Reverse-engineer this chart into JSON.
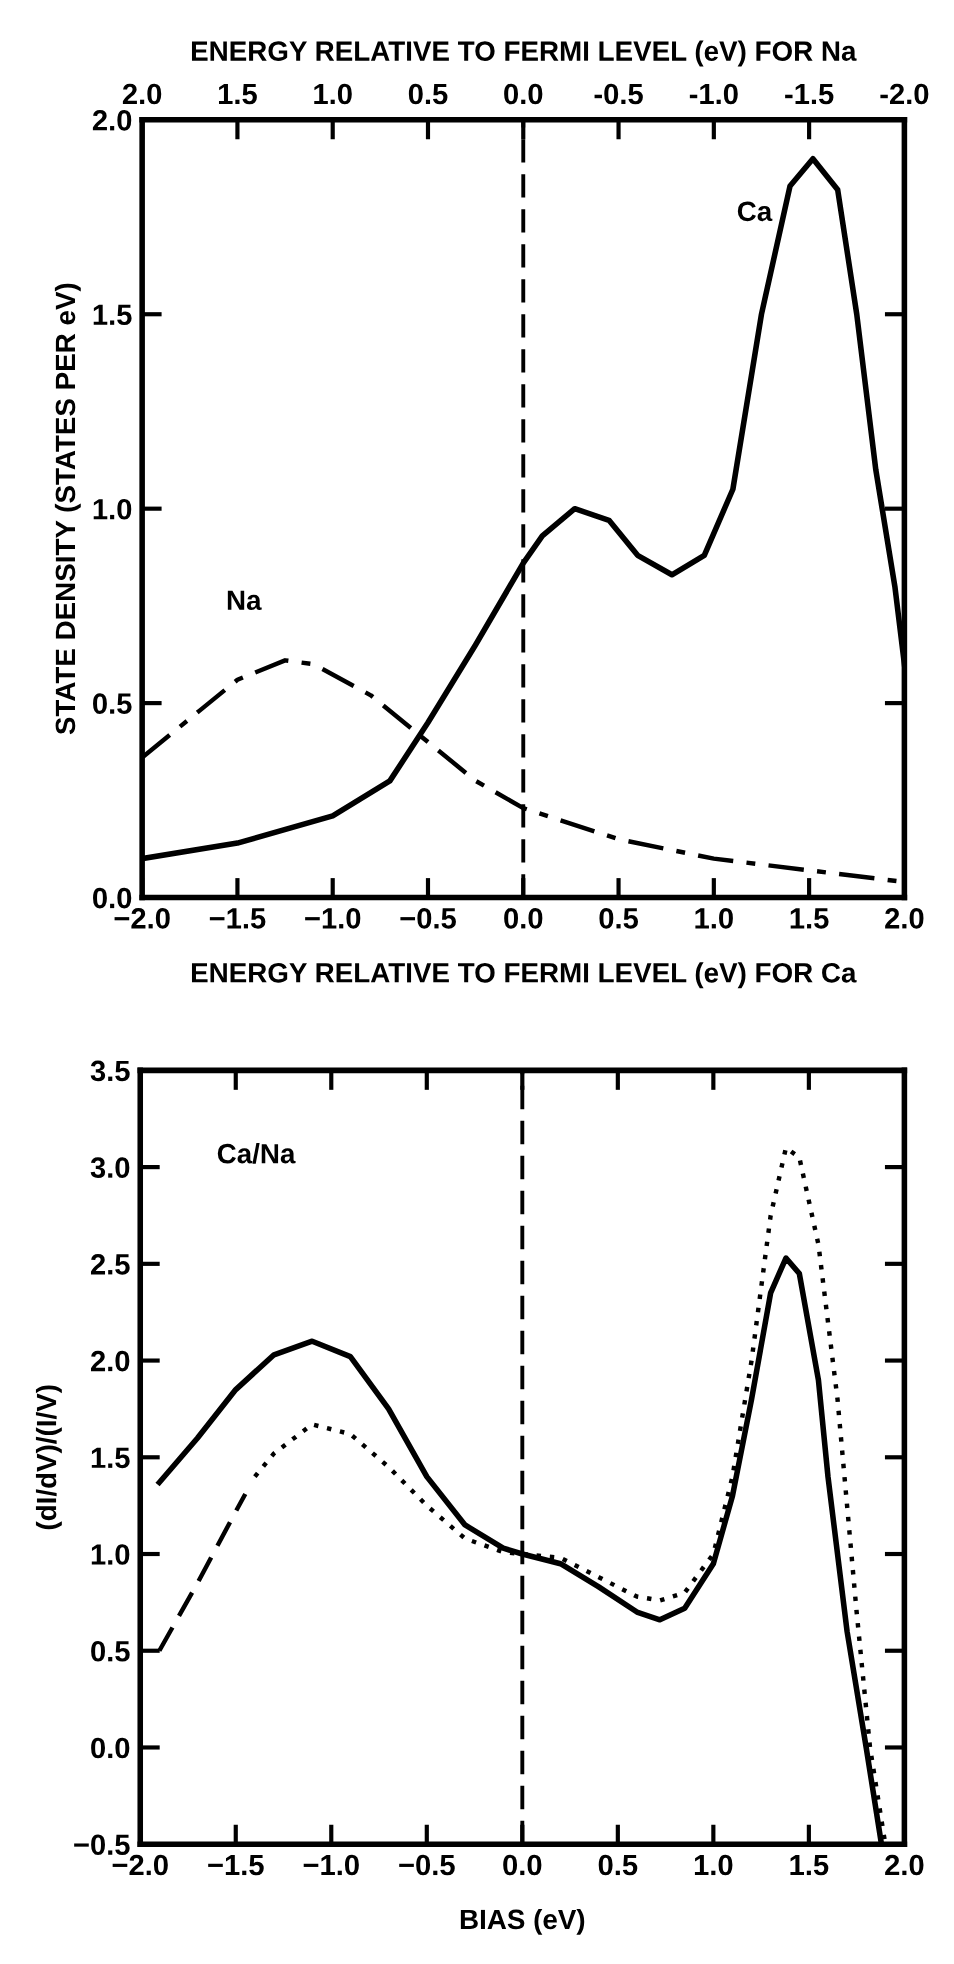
{
  "chart_data": [
    {
      "type": "line",
      "x2label": "ENERGY RELATIVE TO FERMI LEVEL (eV) FOR Na",
      "xlabel": "ENERGY RELATIVE TO FERMI LEVEL (eV) FOR Ca",
      "ylabel": "STATE DENSITY (STATES PER eV)",
      "xlim": [
        -2,
        2
      ],
      "ylim": [
        0,
        2
      ],
      "xticks": [
        {
          "value": -2,
          "label": "−2.0"
        },
        {
          "value": -1.5,
          "label": "−1.5"
        },
        {
          "value": -1,
          "label": "−1.0"
        },
        {
          "value": -0.5,
          "label": "−0.5"
        },
        {
          "value": 0,
          "label": "0.0"
        },
        {
          "value": 0.5,
          "label": "0.5"
        },
        {
          "value": 1,
          "label": "1.0"
        },
        {
          "value": 1.5,
          "label": "1.5"
        },
        {
          "value": 2,
          "label": "2.0"
        }
      ],
      "x2lim": [
        2,
        -2
      ],
      "x2ticks": [
        {
          "value": 2,
          "label": "2.0"
        },
        {
          "value": 1.5,
          "label": "1.5"
        },
        {
          "value": 1,
          "label": "1.0"
        },
        {
          "value": 0.5,
          "label": "0.5"
        },
        {
          "value": 0,
          "label": "0.0"
        },
        {
          "value": -0.5,
          "label": "-0.5"
        },
        {
          "value": -1,
          "label": "-1.0"
        },
        {
          "value": -1.5,
          "label": "-1.5"
        },
        {
          "value": -2,
          "label": "-2.0"
        }
      ],
      "yticks": [
        {
          "value": 0,
          "label": "0.0"
        },
        {
          "value": 0.5,
          "label": "0.5"
        },
        {
          "value": 1,
          "label": "1.0"
        },
        {
          "value": 1.5,
          "label": "1.5"
        },
        {
          "value": 2,
          "label": "2.0"
        }
      ],
      "grid": false,
      "legend": false,
      "series": [
        {
          "color": "#000000",
          "line_style": "solid",
          "x": [
            -2,
            -1.5,
            -1,
            -0.7,
            -0.5,
            -0.25,
            0,
            0.1,
            0.27,
            0.45,
            0.6,
            0.78,
            0.95,
            1.1,
            1.25,
            1.4,
            1.52,
            1.65,
            1.75,
            1.85,
            1.95,
            2.0
          ],
          "values": [
            0.1,
            0.14,
            0.21,
            0.3,
            0.45,
            0.65,
            0.86,
            0.93,
            1.0,
            0.97,
            0.88,
            0.83,
            0.88,
            1.05,
            1.5,
            1.83,
            1.9,
            1.82,
            1.5,
            1.1,
            0.8,
            0.6
          ]
        },
        {
          "color": "#000000",
          "line_style": "dashdot",
          "x": [
            -2,
            -1.7,
            -1.5,
            -1.25,
            -1.1,
            -0.8,
            -0.5,
            -0.25,
            0,
            0.5,
            1.0,
            1.5,
            2.0
          ],
          "values": [
            0.36,
            0.48,
            0.56,
            0.61,
            0.6,
            0.52,
            0.4,
            0.3,
            0.23,
            0.15,
            0.1,
            0.07,
            0.04
          ]
        }
      ],
      "ref_lines": [
        {
          "axis": "x",
          "value": 0,
          "line_style": "dashed",
          "color": "#000000"
        }
      ],
      "annotations": [
        "Ca",
        "Na"
      ]
    },
    {
      "type": "line",
      "xlabel": "BIAS (eV)",
      "ylabel": "(dI/dV)/(I/V)",
      "xlim": [
        -2,
        2
      ],
      "ylim": [
        -0.5,
        3.5
      ],
      "xticks": [
        {
          "value": -2,
          "label": "−2.0"
        },
        {
          "value": -1.5,
          "label": "−1.5"
        },
        {
          "value": -1,
          "label": "−1.0"
        },
        {
          "value": -0.5,
          "label": "−0.5"
        },
        {
          "value": 0,
          "label": "0.0"
        },
        {
          "value": 0.5,
          "label": "0.5"
        },
        {
          "value": 1,
          "label": "1.0"
        },
        {
          "value": 1.5,
          "label": "1.5"
        },
        {
          "value": 2,
          "label": "2.0"
        }
      ],
      "yticks": [
        {
          "value": -0.5,
          "label": "−0.5"
        },
        {
          "value": 0,
          "label": "0.0"
        },
        {
          "value": 0.5,
          "label": "0.5"
        },
        {
          "value": 1,
          "label": "1.0"
        },
        {
          "value": 1.5,
          "label": "1.5"
        },
        {
          "value": 2,
          "label": "2.0"
        },
        {
          "value": 2.5,
          "label": "2.5"
        },
        {
          "value": 3,
          "label": "3.0"
        },
        {
          "value": 3.5,
          "label": "3.5"
        }
      ],
      "grid": false,
      "legend": false,
      "series": [
        {
          "color": "#000000",
          "line_style": "solid",
          "x": [
            -1.9,
            -1.7,
            -1.5,
            -1.3,
            -1.1,
            -0.9,
            -0.7,
            -0.5,
            -0.3,
            -0.1,
            0,
            0.2,
            0.4,
            0.6,
            0.72,
            0.85,
            1.0,
            1.1,
            1.2,
            1.3,
            1.38,
            1.45,
            1.55,
            1.6,
            1.7,
            1.8,
            1.88
          ],
          "values": [
            1.37,
            1.6,
            1.85,
            2.03,
            2.1,
            2.02,
            1.75,
            1.4,
            1.15,
            1.03,
            1.0,
            0.95,
            0.83,
            0.7,
            0.66,
            0.72,
            0.95,
            1.3,
            1.8,
            2.35,
            2.53,
            2.45,
            1.9,
            1.4,
            0.6,
            0.0,
            -0.5
          ]
        },
        {
          "color": "#000000",
          "line_style": "dashed",
          "x": [
            -1.9,
            -1.7,
            -1.5,
            -1.45
          ],
          "values": [
            0.5,
            0.85,
            1.22,
            1.31
          ]
        },
        {
          "color": "#000000",
          "line_style": "dotted",
          "x": [
            -1.4,
            -1.3,
            -1.1,
            -0.9,
            -0.7,
            -0.5,
            -0.3,
            -0.1,
            0,
            0.2,
            0.4,
            0.6,
            0.72,
            0.85,
            1.0,
            1.1,
            1.2,
            1.3,
            1.38,
            1.45,
            1.55,
            1.65,
            1.75,
            1.82,
            1.9
          ],
          "values": [
            1.4,
            1.52,
            1.67,
            1.62,
            1.45,
            1.25,
            1.08,
            1.01,
            1.0,
            0.98,
            0.88,
            0.78,
            0.76,
            0.8,
            1.0,
            1.4,
            2.0,
            2.75,
            3.1,
            3.05,
            2.6,
            1.8,
            0.7,
            0.0,
            -0.5
          ]
        }
      ],
      "ref_lines": [
        {
          "axis": "x",
          "value": 0,
          "line_style": "dashed",
          "color": "#000000"
        }
      ],
      "annotations": [
        "Ca/Na"
      ]
    }
  ]
}
